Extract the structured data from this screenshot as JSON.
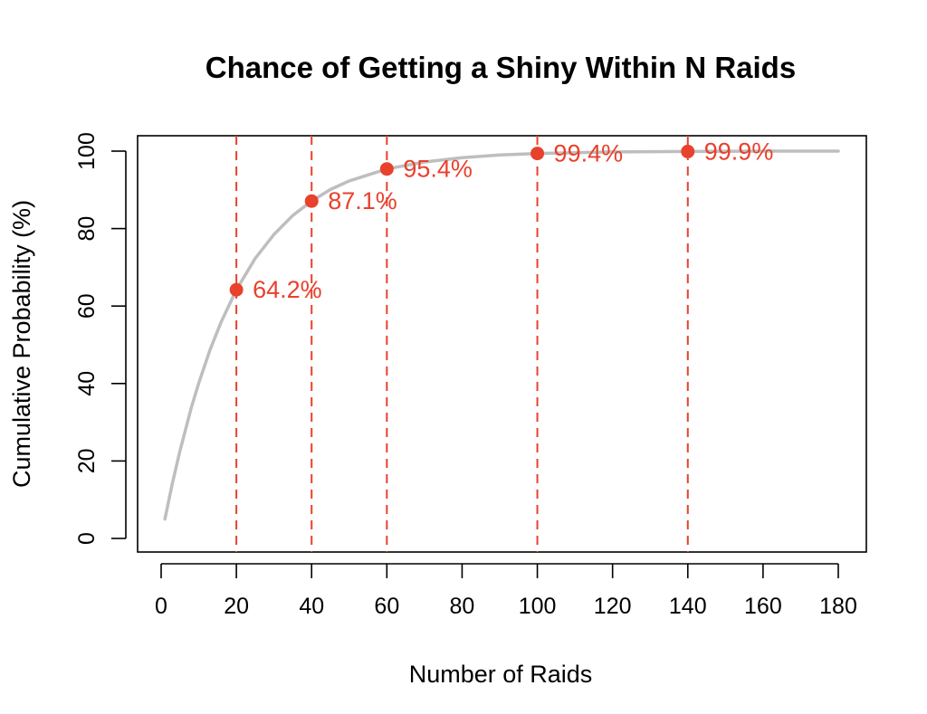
{
  "chart_data": {
    "type": "line",
    "title": "Chance of Getting a Shiny Within N Raids",
    "xlabel": "Number of Raids",
    "ylabel": "Cumulative Probability (%)",
    "xlim": [
      1,
      180
    ],
    "ylim": [
      0,
      100
    ],
    "x_ticks": [
      0,
      20,
      40,
      60,
      80,
      100,
      120,
      140,
      160,
      180
    ],
    "y_ticks": [
      0,
      20,
      40,
      60,
      80,
      100
    ],
    "grid": false,
    "curve": {
      "x": [
        1,
        3,
        5,
        8,
        10,
        13,
        16,
        20,
        25,
        30,
        35,
        40,
        45,
        50,
        60,
        70,
        80,
        90,
        100,
        120,
        140,
        160,
        180
      ],
      "y": [
        5.0,
        14.3,
        22.6,
        33.7,
        40.1,
        48.7,
        56.0,
        64.2,
        72.3,
        78.5,
        83.4,
        87.1,
        90.1,
        92.3,
        95.4,
        97.2,
        98.3,
        99.0,
        99.4,
        99.8,
        99.9,
        100.0,
        100.0
      ],
      "color": "#bebebe"
    },
    "highlights": {
      "x": [
        20,
        40,
        60,
        100,
        140
      ],
      "y": [
        64.2,
        87.1,
        95.4,
        99.4,
        99.9
      ],
      "labels": [
        "64.2%",
        "87.1%",
        "95.4%",
        "99.4%",
        "99.9%"
      ],
      "color": "#e8412c"
    }
  }
}
